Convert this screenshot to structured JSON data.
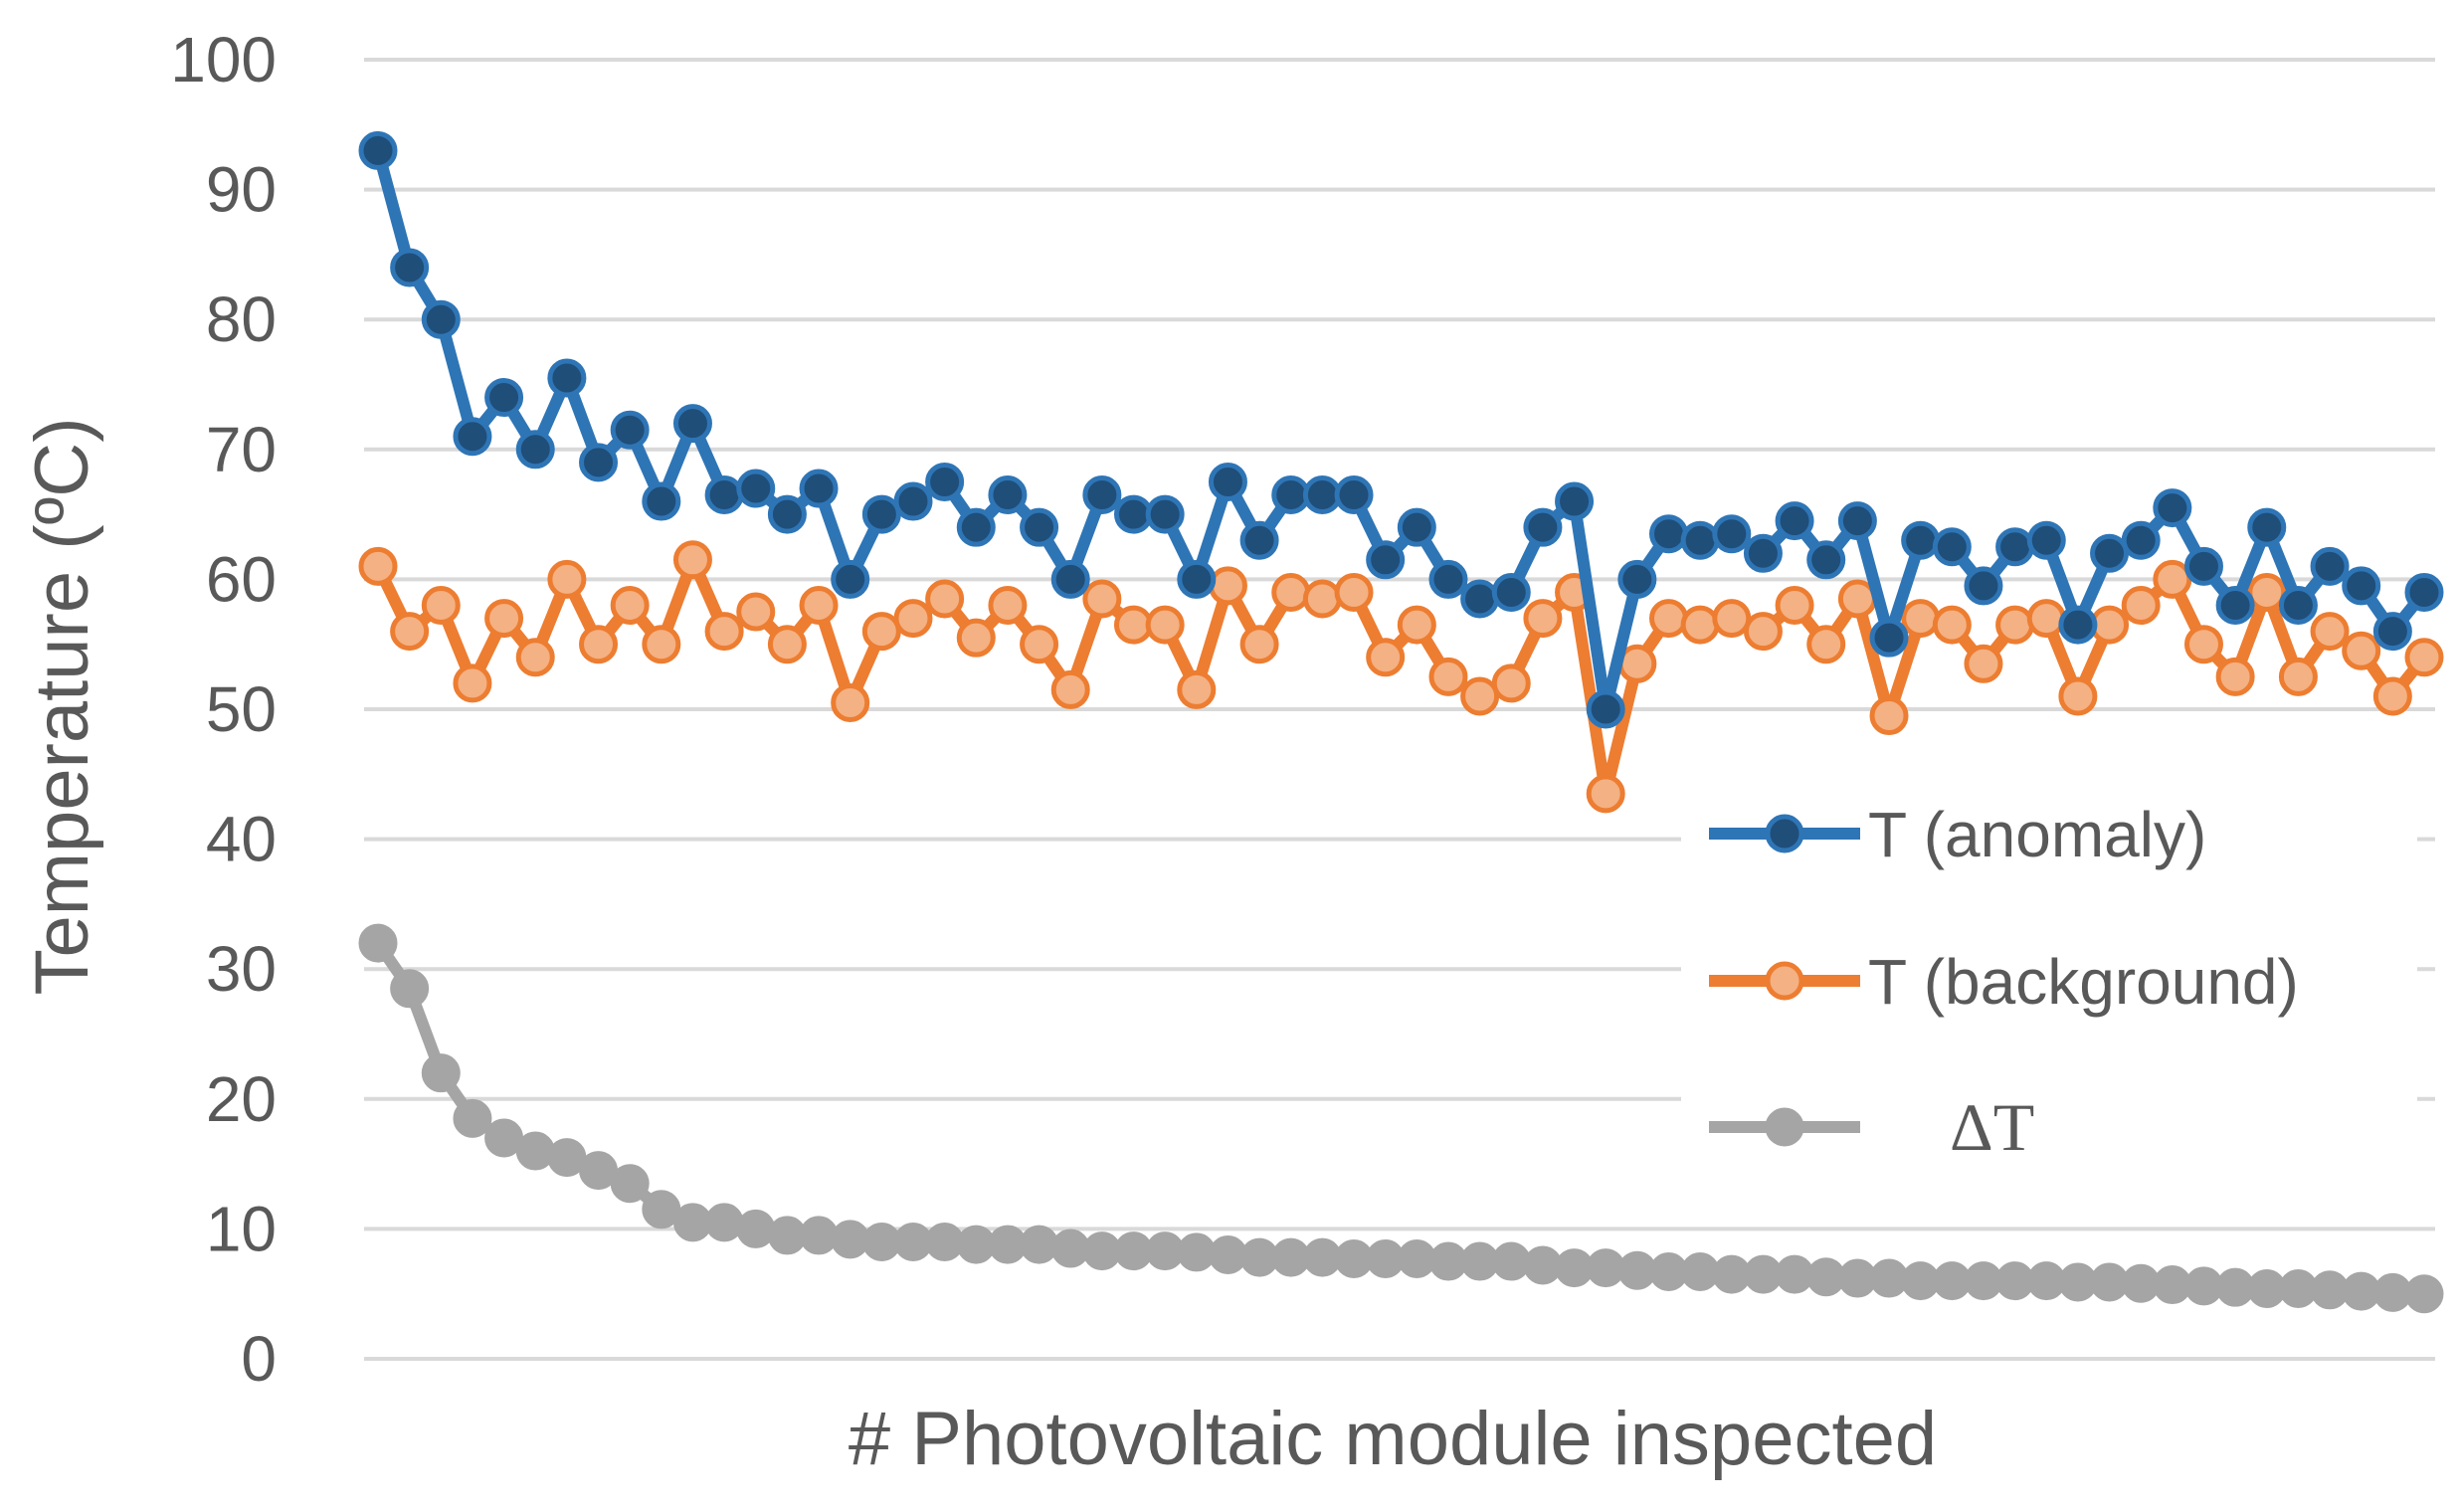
{
  "chart_data": {
    "type": "line",
    "title": "",
    "xlabel": "# Photovoltaic module inspected",
    "ylabel": "Temperature (ºC)",
    "ylim": [
      0,
      100
    ],
    "yticks": [
      "0",
      "10",
      "20",
      "30",
      "40",
      "50",
      "60",
      "70",
      "80",
      "90",
      "100"
    ],
    "grid": true,
    "legend_position": "right",
    "x": [
      1,
      2,
      3,
      4,
      5,
      6,
      7,
      8,
      9,
      10,
      11,
      12,
      13,
      14,
      15,
      16,
      17,
      18,
      19,
      20,
      21,
      22,
      23,
      24,
      25,
      26,
      27,
      28,
      29,
      30,
      31,
      32,
      33,
      34,
      35,
      36,
      37,
      38,
      39,
      40,
      41,
      42,
      43,
      44,
      45,
      46,
      47,
      48,
      49,
      50,
      51,
      52,
      53,
      54,
      55,
      56,
      57,
      58,
      59,
      60,
      61,
      62,
      63,
      64,
      65,
      66
    ],
    "series": [
      {
        "name": "T (anomaly)",
        "color": "#2e75b6",
        "marker_fill": "#1f4e79",
        "values": [
          93,
          84,
          80,
          71,
          74,
          70,
          75.5,
          69,
          71.5,
          66,
          72,
          66.5,
          67,
          65,
          67,
          60,
          65,
          66,
          67.5,
          64,
          66.5,
          64,
          60,
          66.5,
          65,
          65,
          60,
          67.5,
          63,
          66.5,
          66.5,
          66.5,
          61.5,
          64,
          60,
          58.5,
          59,
          64,
          66,
          50,
          60,
          63.5,
          63,
          63.5,
          62,
          64.5,
          61.5,
          64.5,
          55.5,
          63,
          62.5,
          59.5,
          62.5,
          63,
          56.5,
          62,
          63,
          65.5,
          61,
          58,
          64,
          58,
          61,
          59.5,
          56,
          59
        ]
      },
      {
        "name": "T (background)",
        "color": "#ed7d31",
        "marker_fill": "#f4b183",
        "values": [
          61,
          56,
          58,
          52,
          57,
          54,
          60,
          55,
          58,
          55,
          61.5,
          56,
          57.5,
          55,
          58,
          50.5,
          56,
          57,
          58.5,
          55.5,
          58,
          55,
          51.5,
          58.5,
          56.5,
          56.5,
          51.5,
          59.5,
          55,
          59,
          58.5,
          59,
          54,
          56.5,
          52.5,
          51,
          52,
          57,
          59,
          43.5,
          53.5,
          57,
          56.5,
          57,
          56,
          58,
          55,
          58.5,
          49.5,
          57,
          56.5,
          53.5,
          56.5,
          57,
          51,
          56.5,
          58,
          60,
          55,
          52.5,
          59,
          52.5,
          56,
          54.5,
          51,
          54
        ]
      },
      {
        "name": "ΔT",
        "color": "#a5a5a5",
        "marker_fill": "#a5a5a5",
        "values": [
          32,
          28.5,
          22,
          18.5,
          17,
          16,
          15.5,
          14.5,
          13.5,
          11.5,
          10.5,
          10.5,
          10,
          9.5,
          9.5,
          9.2,
          9,
          9,
          9,
          8.8,
          8.8,
          8.8,
          8.5,
          8.3,
          8.3,
          8.3,
          8.2,
          8,
          7.8,
          7.8,
          7.8,
          7.7,
          7.7,
          7.7,
          7.5,
          7.5,
          7.5,
          7.2,
          7,
          7,
          6.8,
          6.7,
          6.7,
          6.5,
          6.5,
          6.5,
          6.3,
          6.2,
          6.2,
          6,
          6,
          6,
          6,
          6,
          5.9,
          5.9,
          5.8,
          5.7,
          5.6,
          5.5,
          5.4,
          5.4,
          5.3,
          5.2,
          5.1,
          5
        ]
      }
    ]
  }
}
